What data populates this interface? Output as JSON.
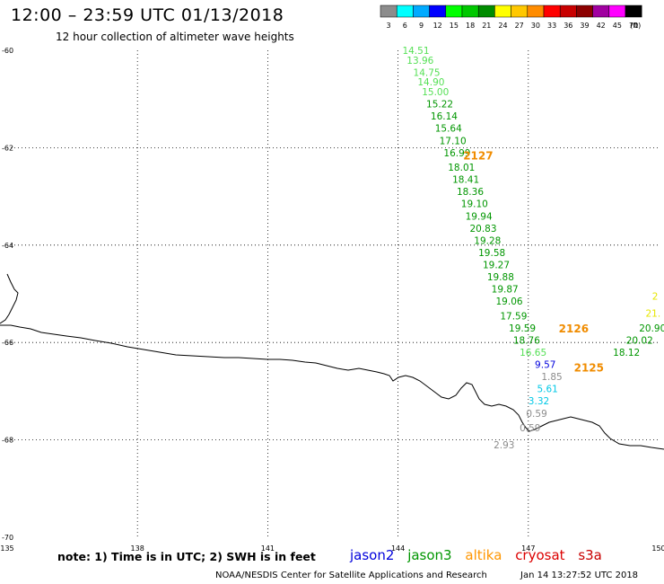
{
  "title": "12:00 – 23:59 UTC 01/13/2018",
  "subtitle": "12 hour collection of altimeter wave heights",
  "legend": {
    "unit": "(ft)",
    "bins": [
      {
        "label": "3",
        "color": "#8c8c8c"
      },
      {
        "label": "6",
        "color": "#00ffff"
      },
      {
        "label": "9",
        "color": "#00aaff"
      },
      {
        "label": "12",
        "color": "#0000ff"
      },
      {
        "label": "15",
        "color": "#00ff00"
      },
      {
        "label": "18",
        "color": "#00c800"
      },
      {
        "label": "21",
        "color": "#008c00"
      },
      {
        "label": "24",
        "color": "#ffff00"
      },
      {
        "label": "27",
        "color": "#ffc800"
      },
      {
        "label": "30",
        "color": "#ff8c00"
      },
      {
        "label": "33",
        "color": "#ff0000"
      },
      {
        "label": "36",
        "color": "#c80000"
      },
      {
        "label": "39",
        "color": "#8c0000"
      },
      {
        "label": "42",
        "color": "#a000a0"
      },
      {
        "label": "45",
        "color": "#ff00ff"
      },
      {
        "label": "70",
        "color": "#000000"
      }
    ]
  },
  "axes": {
    "lon_ticks": [
      "135",
      "138",
      "141",
      "144",
      "147",
      "150"
    ],
    "lon_values": [
      135,
      138,
      141,
      144,
      147,
      150
    ],
    "lat_ticks": [
      "-60",
      "-62",
      "-64",
      "-66",
      "-68",
      "-70"
    ],
    "lat_values": [
      -60,
      -62,
      -64,
      -66,
      -68,
      -70
    ],
    "lon_range": [
      135,
      150
    ],
    "lat_range": [
      -60,
      -70
    ]
  },
  "observations": [
    {
      "text": "14.51",
      "lon": 144.1,
      "lat": -60.0,
      "color": "#55e055"
    },
    {
      "text": "13.96",
      "lon": 144.2,
      "lat": -60.2,
      "color": "#55e055"
    },
    {
      "text": "14.75",
      "lon": 144.35,
      "lat": -60.45,
      "color": "#55e055"
    },
    {
      "text": "14.90",
      "lon": 144.45,
      "lat": -60.65,
      "color": "#55e055"
    },
    {
      "text": "15.00",
      "lon": 144.55,
      "lat": -60.85,
      "color": "#55e055"
    },
    {
      "text": "15.22",
      "lon": 144.65,
      "lat": -61.1,
      "color": "#009600"
    },
    {
      "text": "16.14",
      "lon": 144.75,
      "lat": -61.35,
      "color": "#009600"
    },
    {
      "text": "15.64",
      "lon": 144.85,
      "lat": -61.6,
      "color": "#009600"
    },
    {
      "text": "17.10",
      "lon": 144.95,
      "lat": -61.85,
      "color": "#009600"
    },
    {
      "text": "16.99",
      "lon": 145.05,
      "lat": -62.1,
      "color": "#009600"
    },
    {
      "text": "18.01",
      "lon": 145.15,
      "lat": -62.4,
      "color": "#009600"
    },
    {
      "text": "18.41",
      "lon": 145.25,
      "lat": -62.65,
      "color": "#009600"
    },
    {
      "text": "18.36",
      "lon": 145.35,
      "lat": -62.9,
      "color": "#009600"
    },
    {
      "text": "19.10",
      "lon": 145.45,
      "lat": -63.15,
      "color": "#009600"
    },
    {
      "text": "19.94",
      "lon": 145.55,
      "lat": -63.4,
      "color": "#009600"
    },
    {
      "text": "20.83",
      "lon": 145.65,
      "lat": -63.65,
      "color": "#009600"
    },
    {
      "text": "19.28",
      "lon": 145.75,
      "lat": -63.9,
      "color": "#009600"
    },
    {
      "text": "19.58",
      "lon": 145.85,
      "lat": -64.15,
      "color": "#009600"
    },
    {
      "text": "19.27",
      "lon": 145.95,
      "lat": -64.4,
      "color": "#009600"
    },
    {
      "text": "19.88",
      "lon": 146.05,
      "lat": -64.65,
      "color": "#009600"
    },
    {
      "text": "19.87",
      "lon": 146.15,
      "lat": -64.9,
      "color": "#009600"
    },
    {
      "text": "19.06",
      "lon": 146.25,
      "lat": -65.15,
      "color": "#009600"
    },
    {
      "text": "17.59",
      "lon": 146.35,
      "lat": -65.45,
      "color": "#009600"
    },
    {
      "text": "19.59",
      "lon": 146.55,
      "lat": -65.7,
      "color": "#009600"
    },
    {
      "text": "18.76",
      "lon": 146.65,
      "lat": -65.95,
      "color": "#009600"
    },
    {
      "text": "16.65",
      "lon": 146.8,
      "lat": -66.2,
      "color": "#55e055"
    },
    {
      "text": "9.57",
      "lon": 147.15,
      "lat": -66.45,
      "color": "#0000dc"
    },
    {
      "text": "1.85",
      "lon": 147.3,
      "lat": -66.7,
      "color": "#8c8c8c"
    },
    {
      "text": "5.61",
      "lon": 147.2,
      "lat": -66.95,
      "color": "#00c8e6"
    },
    {
      "text": "3.32",
      "lon": 147.0,
      "lat": -67.2,
      "color": "#00c8e6"
    },
    {
      "text": "0.59",
      "lon": 146.95,
      "lat": -67.45,
      "color": "#8c8c8c"
    },
    {
      "text": "0.59",
      "lon": 146.8,
      "lat": -67.75,
      "color": "#8c8c8c"
    },
    {
      "text": "2.93",
      "lon": 146.2,
      "lat": -68.1,
      "color": "#8c8c8c"
    },
    {
      "text": "20.90",
      "lon": 149.55,
      "lat": -65.7,
      "color": "#009600"
    },
    {
      "text": "20.02",
      "lon": 149.25,
      "lat": -65.95,
      "color": "#009600"
    },
    {
      "text": "18.12",
      "lon": 148.95,
      "lat": -66.2,
      "color": "#009600"
    },
    {
      "text": "21.",
      "lon": 149.7,
      "lat": -65.4,
      "color": "#e6e600"
    },
    {
      "text": "2",
      "lon": 149.85,
      "lat": -65.05,
      "color": "#e6e600"
    }
  ],
  "time_labels": [
    {
      "text": "2127",
      "lon": 145.5,
      "lat": -62.15
    },
    {
      "text": "2126",
      "lon": 147.7,
      "lat": -65.7
    },
    {
      "text": "2125",
      "lon": 148.05,
      "lat": -66.5
    }
  ],
  "note": "note: 1) Time is in UTC; 2) SWH is in feet",
  "satellites": [
    {
      "name": "jason2",
      "color": "#0000dc"
    },
    {
      "name": "jason3",
      "color": "#009600"
    },
    {
      "name": "altika",
      "color": "#ff9600"
    },
    {
      "name": "cryosat",
      "color": "#dc0000"
    },
    {
      "name": "s3a",
      "color": "#c80000"
    }
  ],
  "credit": "NOAA/NESDIS Center for Satellite Applications and Research",
  "timestamp": "Jan 14 13:27:52 UTC 2018"
}
